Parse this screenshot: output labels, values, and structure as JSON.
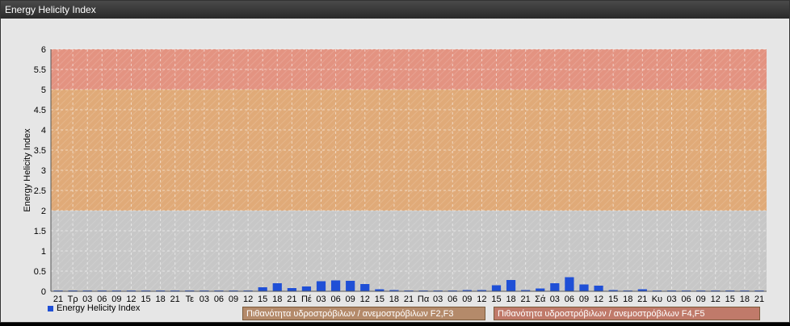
{
  "window": {
    "title": "Energy Helicity Index"
  },
  "legend": {
    "series_label": "Energy Helicity Index",
    "series_color": "#1f4fd6"
  },
  "bands": [
    {
      "label": "Πιθανότητα υδροστρόβιλων / ανεμοστρόβιλων F2,F3",
      "from": 2,
      "to": 5,
      "color": "#e4a46a",
      "label_bg": "#b48a6a"
    },
    {
      "label": "Πιθανότητα υδροστρόβιλων / ανεμοστρόβιλων F4,F5",
      "from": 5,
      "to": 6,
      "color": "#e88a74",
      "label_bg": "#c07a6a"
    }
  ],
  "chart_data": {
    "type": "bar",
    "title": "",
    "xlabel": "",
    "ylabel": "Energy Helicity Index",
    "ylim": [
      0,
      6
    ],
    "yticks": [
      "0",
      "0.5",
      "1",
      "1.5",
      "2",
      "2.5",
      "3",
      "3.5",
      "4",
      "4.5",
      "5",
      "5.5",
      "6"
    ],
    "grid": true,
    "legend_position": "bottom-left",
    "categories": [
      "21",
      "Τρ",
      "03",
      "06",
      "09",
      "12",
      "15",
      "18",
      "21",
      "Τε",
      "03",
      "06",
      "09",
      "12",
      "15",
      "18",
      "21",
      "Πέ",
      "03",
      "06",
      "09",
      "12",
      "15",
      "18",
      "21",
      "Πα",
      "03",
      "06",
      "09",
      "12",
      "15",
      "18",
      "21",
      "Σά",
      "03",
      "06",
      "09",
      "12",
      "15",
      "18",
      "21",
      "Κυ",
      "03",
      "06",
      "09",
      "12",
      "15",
      "18",
      "21"
    ],
    "series": [
      {
        "name": "Energy Helicity Index",
        "values": [
          0.01,
          0.01,
          0.01,
          0.01,
          0.01,
          0.01,
          0.01,
          0.01,
          0.01,
          0.01,
          0.01,
          0.01,
          0.02,
          0.02,
          0.1,
          0.2,
          0.08,
          0.12,
          0.25,
          0.27,
          0.26,
          0.18,
          0.05,
          0.03,
          0.02,
          0.02,
          0.02,
          0.02,
          0.03,
          0.03,
          0.15,
          0.28,
          0.03,
          0.07,
          0.2,
          0.35,
          0.17,
          0.14,
          0.03,
          0.02,
          0.05,
          0.02,
          0.02,
          0.02,
          0.02,
          0.02,
          0.02,
          0.02,
          0.02
        ]
      }
    ]
  }
}
